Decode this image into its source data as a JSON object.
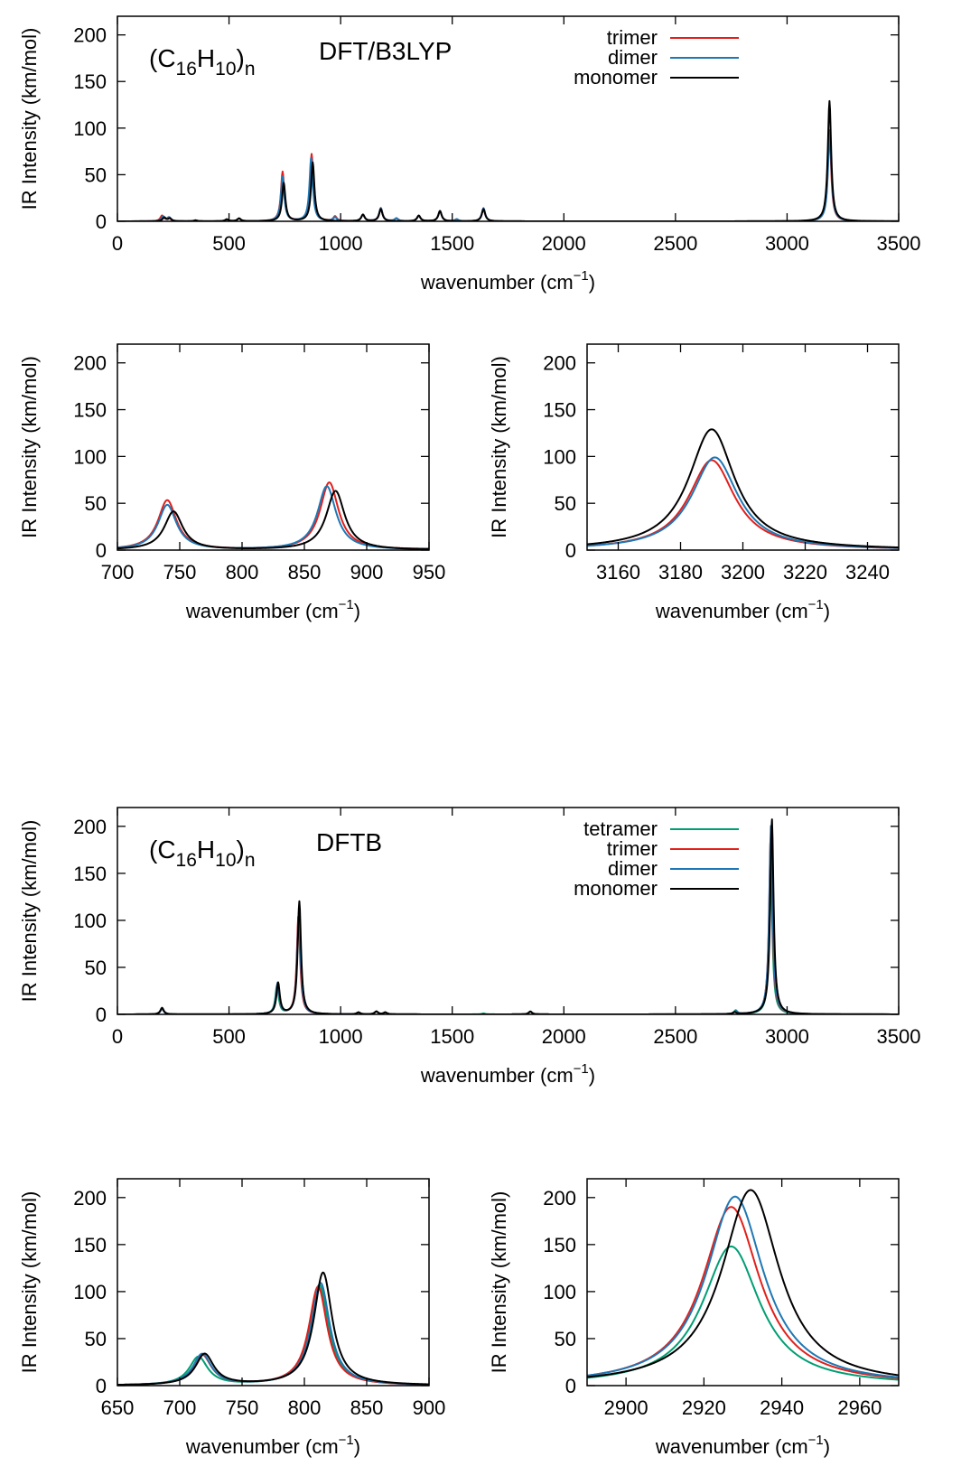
{
  "chart_data": [
    {
      "type": "line",
      "panel": "dft-full",
      "ylabel": "IR Intensity (km/mol)",
      "xlabel": "wavenumber (cm",
      "xlabel_sup": "−1",
      "xlabel_tail": ")",
      "annotation": {
        "formula": "(C",
        "s1": "16",
        "h": "H",
        "s2": "10",
        "close": ")",
        "sn": "n",
        "method": "DFT/B3LYP"
      },
      "xlim": [
        0,
        3500
      ],
      "ylim": [
        0,
        220
      ],
      "xticks": [
        0,
        500,
        1000,
        1500,
        2000,
        2500,
        3000,
        3500
      ],
      "yticks": [
        0,
        50,
        100,
        150,
        200
      ],
      "legend": "top-right",
      "series": [
        {
          "name": "trimer",
          "color": "#e0201c",
          "w": 9,
          "peaks": [
            [
              200,
              6
            ],
            [
              230,
              4
            ],
            [
              350,
              1
            ],
            [
              490,
              2
            ],
            [
              545,
              3
            ],
            [
              740,
              53
            ],
            [
              870,
              72
            ],
            [
              975,
              5
            ],
            [
              1100,
              7
            ],
            [
              1180,
              14
            ],
            [
              1250,
              3
            ],
            [
              1350,
              6
            ],
            [
              1445,
              11
            ],
            [
              1520,
              2
            ],
            [
              1640,
              14
            ],
            [
              3190,
              96
            ]
          ]
        },
        {
          "name": "dimer",
          "color": "#1f77b4",
          "w": 9,
          "peaks": [
            [
              205,
              5
            ],
            [
              232,
              4
            ],
            [
              350,
              1
            ],
            [
              490,
              2
            ],
            [
              545,
              3
            ],
            [
              740,
              48
            ],
            [
              868,
              68
            ],
            [
              975,
              4
            ],
            [
              1100,
              7
            ],
            [
              1180,
              14
            ],
            [
              1250,
              3
            ],
            [
              1350,
              6
            ],
            [
              1445,
              11
            ],
            [
              1520,
              2
            ],
            [
              1640,
              14
            ],
            [
              3191,
              99
            ]
          ]
        },
        {
          "name": "monomer",
          "color": "#000000",
          "w": 9,
          "peaks": [
            [
              210,
              4
            ],
            [
              235,
              3
            ],
            [
              350,
              1
            ],
            [
              490,
              2
            ],
            [
              545,
              3
            ],
            [
              745,
              41
            ],
            [
              875,
              63
            ],
            [
              1100,
              7
            ],
            [
              1180,
              13
            ],
            [
              1350,
              6
            ],
            [
              1445,
              11
            ],
            [
              1640,
              13
            ],
            [
              3190,
              129
            ]
          ]
        }
      ]
    },
    {
      "type": "line",
      "panel": "dft-zoom-left",
      "ylabel": "IR Intensity (km/mol)",
      "xlabel": "wavenumber (cm",
      "xlabel_sup": "−1",
      "xlabel_tail": ")",
      "xlim": [
        700,
        950
      ],
      "ylim": [
        0,
        220
      ],
      "xticks": [
        700,
        750,
        800,
        850,
        900,
        950
      ],
      "yticks": [
        0,
        50,
        100,
        150,
        200
      ],
      "series": [
        {
          "name": "trimer",
          "color": "#e0201c"
        },
        {
          "name": "dimer",
          "color": "#1f77b4"
        },
        {
          "name": "monomer",
          "color": "#000000"
        }
      ]
    },
    {
      "type": "line",
      "panel": "dft-zoom-right",
      "ylabel": "IR Intensity (km/mol)",
      "xlabel": "wavenumber (cm",
      "xlabel_sup": "−1",
      "xlabel_tail": ")",
      "xlim": [
        3150,
        3250
      ],
      "ylim": [
        0,
        220
      ],
      "xticks": [
        3160,
        3180,
        3200,
        3220,
        3240
      ],
      "yticks": [
        0,
        50,
        100,
        150,
        200
      ],
      "series": [
        {
          "name": "trimer",
          "color": "#e0201c"
        },
        {
          "name": "dimer",
          "color": "#1f77b4"
        },
        {
          "name": "monomer",
          "color": "#000000"
        }
      ]
    },
    {
      "type": "line",
      "panel": "dftb-full",
      "ylabel": "IR Intensity (km/mol)",
      "xlabel": "wavenumber (cm",
      "xlabel_sup": "−1",
      "xlabel_tail": ")",
      "annotation": {
        "formula": "(C",
        "s1": "16",
        "h": "H",
        "s2": "10",
        "close": ")",
        "sn": "n",
        "method": "DFTB"
      },
      "xlim": [
        0,
        3500
      ],
      "ylim": [
        0,
        220
      ],
      "xticks": [
        0,
        500,
        1000,
        1500,
        2000,
        2500,
        3000,
        3500
      ],
      "yticks": [
        0,
        50,
        100,
        150,
        200
      ],
      "legend": "top-right",
      "series": [
        {
          "name": "tetramer",
          "color": "#009e73",
          "w": 9,
          "peaks": [
            [
              200,
              6
            ],
            [
              715,
              30
            ],
            [
              812,
              107
            ],
            [
              1080,
              2
            ],
            [
              1160,
              3
            ],
            [
              1200,
              2
            ],
            [
              1640,
              1
            ],
            [
              1850,
              3
            ],
            [
              2770,
              4
            ],
            [
              2927,
              148
            ]
          ]
        },
        {
          "name": "trimer",
          "color": "#e0201c",
          "w": 9,
          "peaks": [
            [
              200,
              6
            ],
            [
              718,
              32
            ],
            [
              811,
              105
            ],
            [
              1080,
              2
            ],
            [
              1160,
              3
            ],
            [
              1200,
              2
            ],
            [
              1850,
              3
            ],
            [
              2770,
              3
            ],
            [
              2927,
              190
            ]
          ]
        },
        {
          "name": "dimer",
          "color": "#1f77b4",
          "w": 9,
          "peaks": [
            [
              200,
              6
            ],
            [
              718,
              33
            ],
            [
              813,
              109
            ],
            [
              1080,
              2
            ],
            [
              1160,
              3
            ],
            [
              1200,
              2
            ],
            [
              1850,
              3
            ],
            [
              2770,
              3
            ],
            [
              2928,
              201
            ]
          ]
        },
        {
          "name": "monomer",
          "color": "#000000",
          "w": 9,
          "peaks": [
            [
              200,
              7
            ],
            [
              720,
              33
            ],
            [
              815,
              120
            ],
            [
              1080,
              2
            ],
            [
              1160,
              3
            ],
            [
              1200,
              2
            ],
            [
              1850,
              3
            ],
            [
              2765,
              2
            ],
            [
              2932,
              208
            ]
          ]
        }
      ]
    },
    {
      "type": "line",
      "panel": "dftb-zoom-left",
      "ylabel": "IR Intensity (km/mol)",
      "xlabel": "wavenumber (cm",
      "xlabel_sup": "−1",
      "xlabel_tail": ")",
      "xlim": [
        650,
        900
      ],
      "ylim": [
        0,
        220
      ],
      "xticks": [
        650,
        700,
        750,
        800,
        850,
        900
      ],
      "yticks": [
        0,
        50,
        100,
        150,
        200
      ],
      "series": [
        {
          "name": "tetramer",
          "color": "#009e73"
        },
        {
          "name": "trimer",
          "color": "#e0201c"
        },
        {
          "name": "dimer",
          "color": "#1f77b4"
        },
        {
          "name": "monomer",
          "color": "#000000"
        }
      ]
    },
    {
      "type": "line",
      "panel": "dftb-zoom-right",
      "ylabel": "IR Intensity (km/mol)",
      "xlabel": "wavenumber (cm",
      "xlabel_sup": "−1",
      "xlabel_tail": ")",
      "xlim": [
        2890,
        2970
      ],
      "ylim": [
        0,
        220
      ],
      "xticks": [
        2900,
        2920,
        2940,
        2960
      ],
      "yticks": [
        0,
        50,
        100,
        150,
        200
      ],
      "series": [
        {
          "name": "tetramer",
          "color": "#009e73"
        },
        {
          "name": "trimer",
          "color": "#e0201c"
        },
        {
          "name": "dimer",
          "color": "#1f77b4"
        },
        {
          "name": "monomer",
          "color": "#000000"
        }
      ]
    }
  ]
}
